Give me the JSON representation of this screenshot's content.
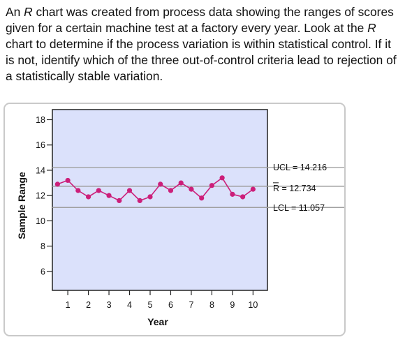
{
  "question": {
    "part1": "An ",
    "r1": "R",
    "part2": " chart was created from process data showing the ranges of scores given for a certain machine test at a factory every year. Look at the ",
    "r2": "R",
    "part3": " chart to determine if the process variation is within statistical control. If it is not, identify which of the three out-of-control criteria lead to rejection of a statistically stable variation."
  },
  "chart_data": {
    "type": "line",
    "xlabel": "Year",
    "ylabel": "Sample Range",
    "xlim": [
      0.25,
      10.7
    ],
    "ylim": [
      4.5,
      18.8
    ],
    "x_ticks": [
      1,
      2,
      3,
      4,
      5,
      6,
      7,
      8,
      9,
      10
    ],
    "y_ticks": [
      6,
      8,
      10,
      12,
      14,
      16,
      18
    ],
    "plot_background": "#dbe1fb",
    "series": [
      {
        "color": "#cc1f7a",
        "x": [
          0.5,
          1,
          1.5,
          2,
          2.5,
          3,
          3.5,
          4,
          4.5,
          5,
          5.5,
          6,
          6.5,
          7,
          7.5,
          8,
          8.5,
          9,
          9.5,
          10
        ],
        "values": [
          12.9,
          13.2,
          12.4,
          11.9,
          12.4,
          12.0,
          11.6,
          12.4,
          11.6,
          11.9,
          12.9,
          12.4,
          13.0,
          12.5,
          11.8,
          12.8,
          13.4,
          12.1,
          11.9,
          12.5
        ]
      }
    ],
    "limits": [
      {
        "key": "UCL",
        "label": "UCL",
        "eq": "=",
        "value": "14.216",
        "y": 14.216,
        "color": "#a0a0a0"
      },
      {
        "key": "CL",
        "label": "R",
        "overbar": true,
        "eq": "=",
        "value": "12.734",
        "y": 12.734,
        "color": "#a0a0a0"
      },
      {
        "key": "LCL",
        "label": "LCL",
        "eq": "=",
        "value": "11.057",
        "y": 11.057,
        "color": "#a0a0a0"
      }
    ],
    "grid": false
  }
}
